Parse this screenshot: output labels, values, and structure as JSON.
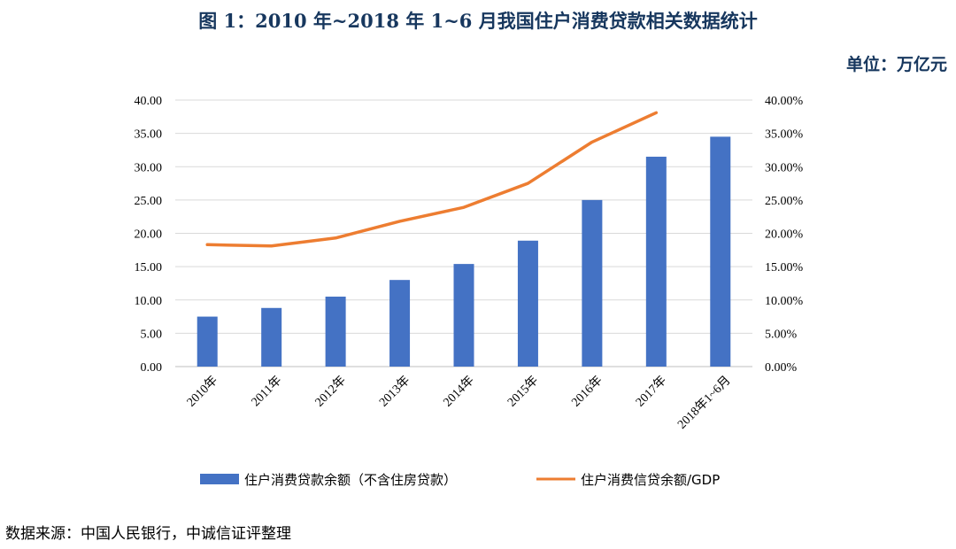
{
  "header": {
    "title": "图 1：2010 年~2018 年 1~6 月我国住户消费贷款相关数据统计",
    "unit": "单位：万亿元"
  },
  "footer": {
    "source": "数据来源：中国人民银行，中诚信证评整理"
  },
  "chart_data": {
    "type": "bar",
    "categories": [
      "2010年",
      "2011年",
      "2012年",
      "2013年",
      "2014年",
      "2015年",
      "2016年",
      "2017年",
      "2018年1~6月"
    ],
    "y_ticks": [
      "0.00",
      "5.00",
      "10.00",
      "15.00",
      "20.00",
      "25.00",
      "30.00",
      "35.00",
      "40.00"
    ],
    "y2_ticks": [
      "0.00%",
      "5.00%",
      "10.00%",
      "15.00%",
      "20.00%",
      "25.00%",
      "30.00%",
      "35.00%",
      "40.00%"
    ],
    "ylim": [
      0,
      40
    ],
    "y2lim": [
      0,
      40
    ],
    "grid": true,
    "legend_position": "bottom",
    "series": [
      {
        "name": "住户消费贷款余额（不含住房贷款）",
        "type": "bar",
        "axis": "left",
        "color": "#4472c4",
        "values": [
          7.5,
          8.8,
          10.5,
          13.0,
          15.4,
          18.9,
          25.0,
          31.5,
          34.5
        ]
      },
      {
        "name": "住户消费信贷余额/GDP",
        "type": "line",
        "axis": "right",
        "color": "#ed7d31",
        "values": [
          18.3,
          18.1,
          19.3,
          21.8,
          23.9,
          27.5,
          33.7,
          38.1,
          null
        ]
      }
    ]
  }
}
